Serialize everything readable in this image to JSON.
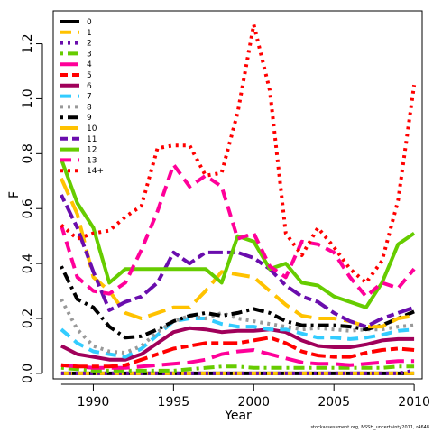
{
  "chart_data": {
    "type": "line",
    "title": "",
    "xlabel": "Year",
    "ylabel": "F",
    "xlim": [
      1987.5,
      2010.5
    ],
    "ylim": [
      -0.02,
      1.32
    ],
    "xticks": [
      1990,
      1995,
      2000,
      2005,
      2010
    ],
    "yticks": [
      0.0,
      0.2,
      0.4,
      0.6,
      0.8,
      1.0,
      1.2
    ],
    "ytick_labels": [
      "0.0",
      "0.2",
      "0.4",
      "0.6",
      "0.8",
      "1.0",
      "1.2"
    ],
    "legend_position": "top-left",
    "x": [
      1988,
      1989,
      1990,
      1991,
      1992,
      1993,
      1994,
      1995,
      1996,
      1997,
      1998,
      1999,
      2000,
      2001,
      2002,
      2003,
      2004,
      2005,
      2006,
      2007,
      2008,
      2009,
      2010
    ],
    "series": [
      {
        "name": "0",
        "color": "#000000",
        "dash": "solid",
        "values": [
          0.0,
          0.0,
          0.0,
          0.0,
          0.0,
          0.0,
          0.0,
          0.0,
          0.0,
          0.0,
          0.0,
          0.0,
          0.0,
          0.0,
          0.0,
          0.0,
          0.0,
          0.0,
          0.0,
          0.0,
          0.0,
          0.0,
          0.0
        ]
      },
      {
        "name": "1",
        "color": "#FFC200",
        "dash": "dashed",
        "values": [
          0.0,
          0.0,
          0.0,
          0.0,
          0.0,
          0.0,
          0.0,
          0.0,
          0.0,
          0.0,
          0.0,
          0.0,
          0.0,
          0.0,
          0.0,
          0.0,
          0.0,
          0.0,
          0.0,
          0.0,
          0.0,
          0.0,
          0.0
        ]
      },
      {
        "name": "2",
        "color": "#6A0DAD",
        "dash": "dotted",
        "values": [
          0.0,
          0.0,
          0.0,
          0.0,
          0.0,
          0.0,
          0.0,
          0.0,
          0.0,
          0.0,
          0.0,
          0.0,
          0.0,
          0.0,
          0.0,
          0.0,
          0.0,
          0.0,
          0.0,
          0.0,
          0.0,
          0.0,
          0.01
        ]
      },
      {
        "name": "3",
        "color": "#66CC00",
        "dash": "dotdash",
        "values": [
          0.02,
          0.015,
          0.01,
          0.01,
          0.01,
          0.01,
          0.01,
          0.01,
          0.015,
          0.02,
          0.025,
          0.025,
          0.02,
          0.02,
          0.02,
          0.02,
          0.02,
          0.02,
          0.02,
          0.02,
          0.02,
          0.025,
          0.025
        ]
      },
      {
        "name": "4",
        "color": "#FF0099",
        "dash": "longdash",
        "values": [
          0.03,
          0.025,
          0.02,
          0.02,
          0.02,
          0.025,
          0.03,
          0.035,
          0.04,
          0.05,
          0.07,
          0.08,
          0.085,
          0.07,
          0.055,
          0.04,
          0.035,
          0.035,
          0.03,
          0.035,
          0.04,
          0.045,
          0.045
        ]
      },
      {
        "name": "5",
        "color": "#FF0000",
        "dash": "twodash",
        "values": [
          0.03,
          0.025,
          0.025,
          0.025,
          0.03,
          0.05,
          0.07,
          0.09,
          0.1,
          0.11,
          0.11,
          0.11,
          0.12,
          0.13,
          0.11,
          0.08,
          0.065,
          0.06,
          0.06,
          0.075,
          0.085,
          0.09,
          0.085
        ]
      },
      {
        "name": "6",
        "color": "#A0005A",
        "dash": "solid",
        "values": [
          0.1,
          0.07,
          0.06,
          0.05,
          0.05,
          0.07,
          0.11,
          0.15,
          0.165,
          0.16,
          0.15,
          0.155,
          0.155,
          0.16,
          0.15,
          0.12,
          0.1,
          0.095,
          0.095,
          0.105,
          0.12,
          0.125,
          0.125
        ]
      },
      {
        "name": "7",
        "color": "#33CCFF",
        "dash": "dashed",
        "values": [
          0.16,
          0.11,
          0.08,
          0.07,
          0.06,
          0.09,
          0.14,
          0.19,
          0.2,
          0.2,
          0.18,
          0.17,
          0.17,
          0.16,
          0.16,
          0.145,
          0.13,
          0.13,
          0.125,
          0.13,
          0.14,
          0.155,
          0.16
        ]
      },
      {
        "name": "8",
        "color": "#999999",
        "dash": "dotted",
        "values": [
          0.27,
          0.16,
          0.1,
          0.08,
          0.075,
          0.1,
          0.15,
          0.19,
          0.21,
          0.2,
          0.22,
          0.2,
          0.19,
          0.18,
          0.17,
          0.16,
          0.165,
          0.16,
          0.155,
          0.16,
          0.16,
          0.17,
          0.175
        ]
      },
      {
        "name": "9",
        "color": "#000000",
        "dash": "dotdash",
        "values": [
          0.39,
          0.27,
          0.24,
          0.17,
          0.13,
          0.135,
          0.16,
          0.19,
          0.21,
          0.22,
          0.21,
          0.22,
          0.235,
          0.22,
          0.19,
          0.175,
          0.175,
          0.175,
          0.17,
          0.16,
          0.175,
          0.2,
          0.225
        ]
      },
      {
        "name": "10",
        "color": "#FFC200",
        "dash": "longdash",
        "values": [
          0.71,
          0.58,
          0.35,
          0.3,
          0.22,
          0.2,
          0.22,
          0.24,
          0.24,
          0.3,
          0.37,
          0.36,
          0.35,
          0.3,
          0.25,
          0.21,
          0.2,
          0.2,
          0.19,
          0.17,
          0.17,
          0.2,
          0.21
        ]
      },
      {
        "name": "11",
        "color": "#6A0DAD",
        "dash": "twodash",
        "values": [
          0.65,
          0.53,
          0.37,
          0.23,
          0.26,
          0.28,
          0.33,
          0.44,
          0.4,
          0.44,
          0.44,
          0.44,
          0.42,
          0.38,
          0.32,
          0.28,
          0.26,
          0.22,
          0.19,
          0.17,
          0.2,
          0.22,
          0.24
        ]
      },
      {
        "name": "12",
        "color": "#66CC00",
        "dash": "solid",
        "values": [
          0.78,
          0.62,
          0.53,
          0.33,
          0.38,
          0.38,
          0.38,
          0.38,
          0.38,
          0.38,
          0.33,
          0.5,
          0.48,
          0.38,
          0.4,
          0.33,
          0.32,
          0.28,
          0.26,
          0.24,
          0.33,
          0.47,
          0.51
        ]
      },
      {
        "name": "13",
        "color": "#FF0099",
        "dash": "dashed",
        "values": [
          0.54,
          0.35,
          0.3,
          0.29,
          0.33,
          0.45,
          0.59,
          0.76,
          0.68,
          0.72,
          0.68,
          0.49,
          0.51,
          0.39,
          0.35,
          0.48,
          0.47,
          0.44,
          0.35,
          0.28,
          0.33,
          0.31,
          0.38
        ]
      },
      {
        "name": "14+",
        "color": "#FF0000",
        "dash": "dotted",
        "values": [
          0.54,
          0.49,
          0.51,
          0.52,
          0.57,
          0.61,
          0.82,
          0.83,
          0.83,
          0.72,
          0.73,
          0.95,
          1.27,
          1.03,
          0.51,
          0.43,
          0.53,
          0.46,
          0.38,
          0.33,
          0.41,
          0.63,
          1.05
        ]
      }
    ],
    "footer_text": "stockassessment.org, NSSH_uncertainty2011, r4648"
  }
}
